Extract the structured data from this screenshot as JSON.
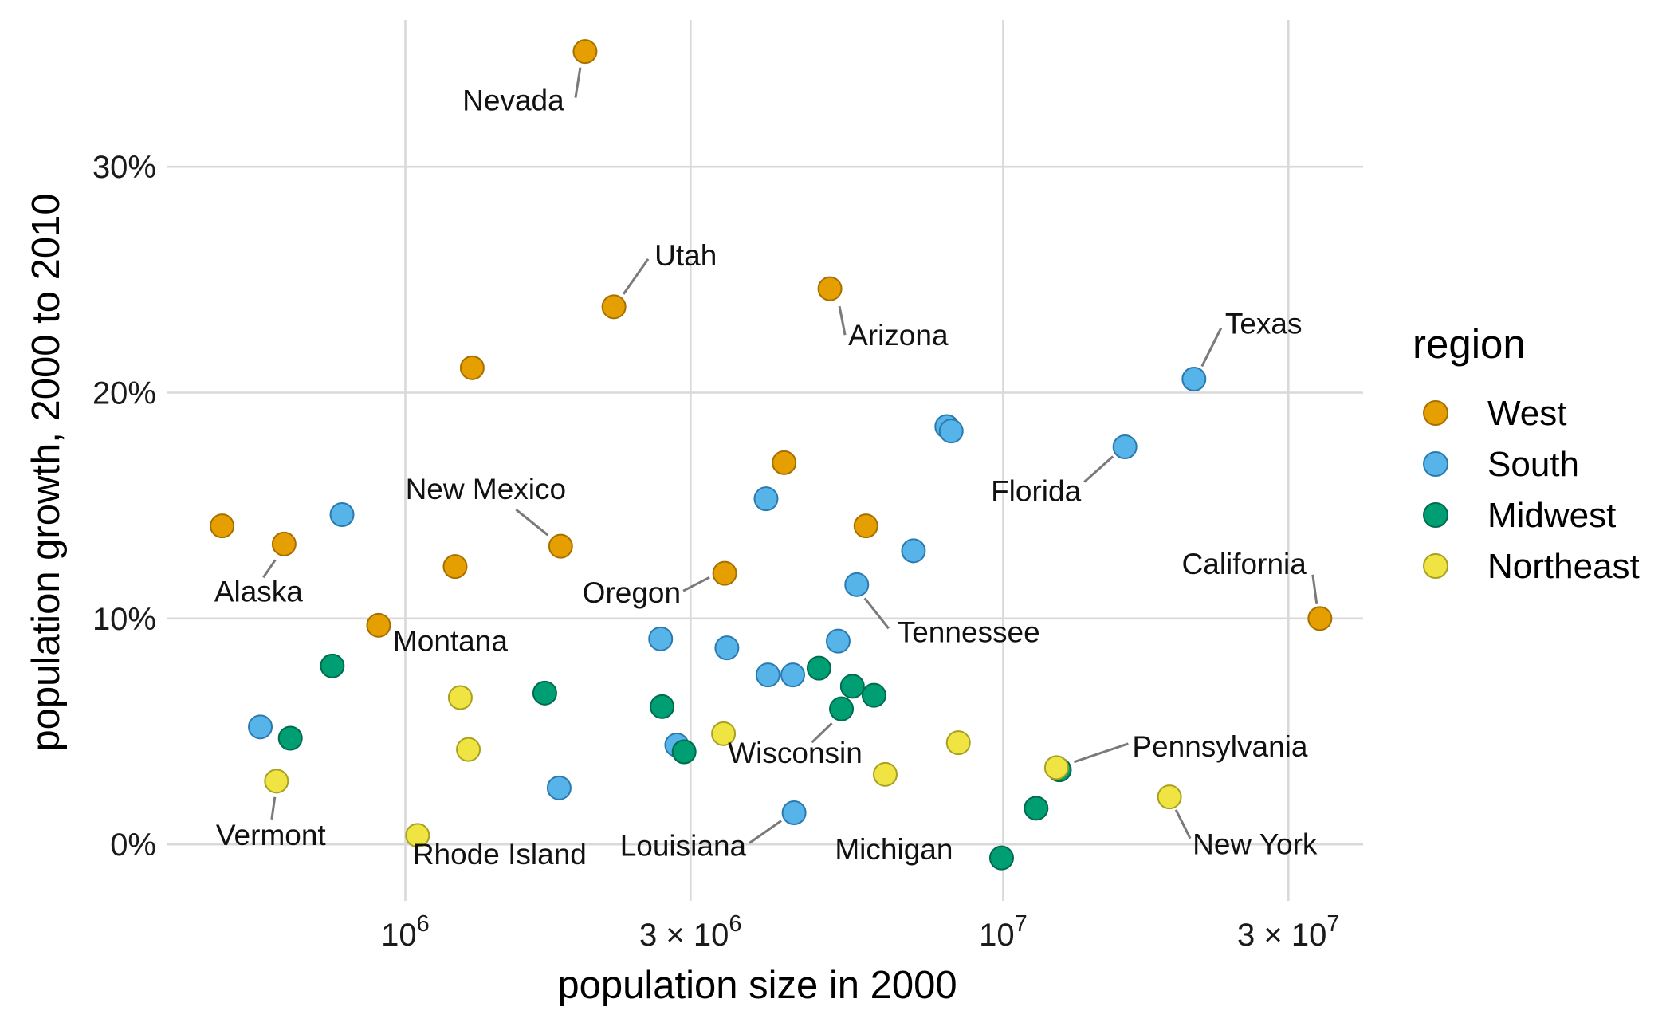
{
  "chart_data": {
    "type": "scatter",
    "xlabel": "population size in 2000",
    "ylabel": "population growth, 2000 to 2010",
    "x_scale": "log10",
    "xlim": [
      400000,
      40000000
    ],
    "ylim": [
      -2.5,
      36.5
    ],
    "x_ticks": [
      {
        "value": 1000000,
        "base": "10",
        "exp": "6"
      },
      {
        "value": 3000000,
        "base": "3 × 10",
        "exp": "6"
      },
      {
        "value": 10000000,
        "base": "10",
        "exp": "7"
      },
      {
        "value": 30000000,
        "base": "3 × 10",
        "exp": "7"
      }
    ],
    "y_ticks": [
      {
        "value": 0,
        "label": "0%"
      },
      {
        "value": 10,
        "label": "10%"
      },
      {
        "value": 20,
        "label": "20%"
      },
      {
        "value": 30,
        "label": "30%"
      }
    ],
    "grid": true,
    "legend": {
      "title": "region",
      "position": "right"
    },
    "series": [
      {
        "name": "West",
        "color": "#E69F00",
        "stroke": "#A66F00",
        "points": [
          {
            "x": 1998257,
            "y": 35.1,
            "label": "Nevada"
          },
          {
            "x": 2233169,
            "y": 23.8,
            "label": "Utah"
          },
          {
            "x": 5130632,
            "y": 24.6,
            "label": "Arizona"
          },
          {
            "x": 1293953,
            "y": 21.1
          },
          {
            "x": 4301261,
            "y": 16.9
          },
          {
            "x": 493782,
            "y": 14.1
          },
          {
            "x": 626932,
            "y": 13.3,
            "label": "Alaska"
          },
          {
            "x": 1819046,
            "y": 13.2,
            "label": "New Mexico"
          },
          {
            "x": 1211537,
            "y": 12.3
          },
          {
            "x": 5894121,
            "y": 14.1
          },
          {
            "x": 3421399,
            "y": 12.0,
            "label": "Oregon"
          },
          {
            "x": 902195,
            "y": 9.7,
            "label": "Montana"
          },
          {
            "x": 33871648,
            "y": 10.0,
            "label": "California"
          }
        ]
      },
      {
        "name": "South",
        "color": "#56B4E9",
        "stroke": "#2A7AB0",
        "points": [
          {
            "x": 20851820,
            "y": 20.6,
            "label": "Texas"
          },
          {
            "x": 15982378,
            "y": 17.6,
            "label": "Florida"
          },
          {
            "x": 8049313,
            "y": 18.5
          },
          {
            "x": 8186453,
            "y": 18.3
          },
          {
            "x": 4012012,
            "y": 15.3
          },
          {
            "x": 783600,
            "y": 14.6
          },
          {
            "x": 7078515,
            "y": 13.0
          },
          {
            "x": 5689283,
            "y": 11.5,
            "label": "Tennessee"
          },
          {
            "x": 2673400,
            "y": 9.1
          },
          {
            "x": 3450654,
            "y": 8.7
          },
          {
            "x": 5296486,
            "y": 9.0
          },
          {
            "x": 4041769,
            "y": 7.5
          },
          {
            "x": 4447100,
            "y": 7.5
          },
          {
            "x": 2844658,
            "y": 4.4
          },
          {
            "x": 1808344,
            "y": 2.5
          },
          {
            "x": 4468976,
            "y": 1.4,
            "label": "Louisiana"
          },
          {
            "x": 572059,
            "y": 5.2
          }
        ]
      },
      {
        "name": "Midwest",
        "color": "#009E73",
        "stroke": "#006B4E",
        "points": [
          {
            "x": 642200,
            "y": 4.7
          },
          {
            "x": 754844,
            "y": 7.9
          },
          {
            "x": 1711263,
            "y": 6.7
          },
          {
            "x": 2688418,
            "y": 6.1
          },
          {
            "x": 2926324,
            "y": 4.1
          },
          {
            "x": 4919479,
            "y": 7.8
          },
          {
            "x": 5595211,
            "y": 7.0
          },
          {
            "x": 6080485,
            "y": 6.6
          },
          {
            "x": 5363675,
            "y": 6.0,
            "label": "Wisconsin"
          },
          {
            "x": 9938444,
            "y": -0.6,
            "label": "Michigan"
          },
          {
            "x": 11353140,
            "y": 1.6
          },
          {
            "x": 12419293,
            "y": 3.3
          }
        ]
      },
      {
        "name": "Northeast",
        "color": "#F0E442",
        "stroke": "#A8A020",
        "points": [
          {
            "x": 608827,
            "y": 2.8,
            "label": "Vermont"
          },
          {
            "x": 1048319,
            "y": 0.4,
            "label": "Rhode Island"
          },
          {
            "x": 1235786,
            "y": 6.5
          },
          {
            "x": 1274923,
            "y": 4.2
          },
          {
            "x": 3405565,
            "y": 4.9
          },
          {
            "x": 6349097,
            "y": 3.1
          },
          {
            "x": 8414350,
            "y": 4.5
          },
          {
            "x": 12281054,
            "y": 3.4,
            "label": "Pennsylvania"
          },
          {
            "x": 18976457,
            "y": 2.1,
            "label": "New York"
          }
        ]
      }
    ]
  }
}
